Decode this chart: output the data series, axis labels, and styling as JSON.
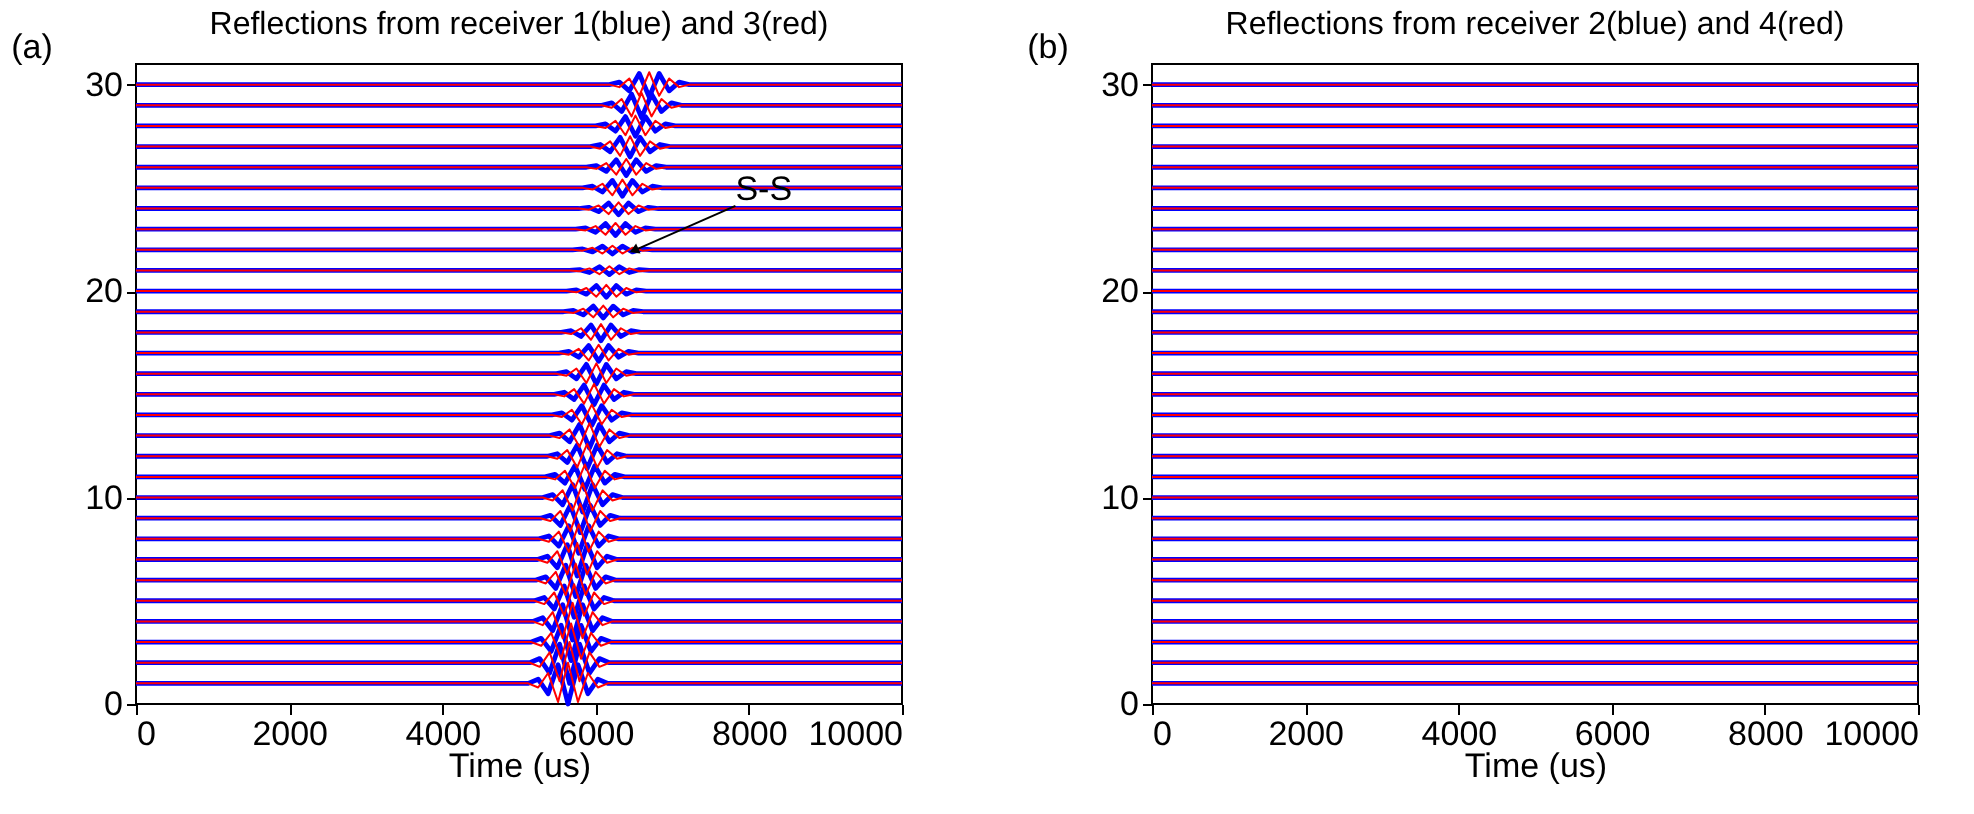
{
  "chart_data": [
    {
      "type": "line",
      "title": "Reflections from receiver 1(blue) and 3(red)",
      "xlabel": "Time (us)",
      "xlim": [
        0,
        10000
      ],
      "xticks": [
        0,
        2000,
        4000,
        6000,
        8000,
        10000
      ],
      "ylim": [
        0,
        31
      ],
      "yticks": [
        0,
        10,
        20,
        30
      ],
      "annotations": [
        "(a)",
        {
          "text": "S-S",
          "x": 6520,
          "y": 22
        }
      ],
      "series": [
        {
          "color": "#0000ff",
          "x": [
            0,
            5120,
            5250,
            5380,
            5510,
            5640,
            5770,
            5900,
            6030,
            6160,
            10000
          ],
          "values": [
            1,
            1,
            1.2,
            0.5,
            1.9,
            0,
            1.9,
            0.5,
            1.2,
            1,
            1
          ]
        },
        {
          "color": "#0000ff",
          "x": [
            0,
            5140,
            5270,
            5400,
            5530,
            5660,
            5790,
            5920,
            6050,
            6180,
            10000
          ],
          "values": [
            2,
            2,
            2.2,
            1.5,
            2.9,
            1,
            2.9,
            1.5,
            2.2,
            2,
            2
          ]
        },
        {
          "color": "#0000ff",
          "x": [
            0,
            5160,
            5290,
            5420,
            5550,
            5680,
            5810,
            5940,
            6070,
            6200,
            10000
          ],
          "values": [
            3,
            3,
            3.18,
            2.55,
            3.81,
            2.1,
            3.81,
            2.55,
            3.18,
            3,
            3
          ]
        },
        {
          "color": "#0000ff",
          "x": [
            0,
            5180,
            5310,
            5440,
            5570,
            5700,
            5830,
            5960,
            6090,
            6220,
            10000
          ],
          "values": [
            4,
            4,
            4.18,
            3.55,
            4.81,
            3.1,
            4.81,
            3.55,
            4.18,
            4,
            4
          ]
        },
        {
          "color": "#0000ff",
          "x": [
            0,
            5200,
            5330,
            5460,
            5590,
            5720,
            5850,
            5980,
            6110,
            6240,
            10000
          ],
          "values": [
            5,
            5,
            5.16,
            4.6,
            5.72,
            4.2,
            5.72,
            4.6,
            5.16,
            5,
            5
          ]
        },
        {
          "color": "#0000ff",
          "x": [
            0,
            5220,
            5350,
            5480,
            5610,
            5740,
            5870,
            6000,
            6130,
            6260,
            10000
          ],
          "values": [
            6,
            6,
            6.16,
            5.6,
            6.72,
            5.2,
            6.72,
            5.6,
            6.16,
            6,
            6
          ]
        },
        {
          "color": "#0000ff",
          "x": [
            0,
            5240,
            5370,
            5500,
            5630,
            5760,
            5890,
            6020,
            6150,
            6280,
            10000
          ],
          "values": [
            7,
            7,
            7.16,
            6.6,
            7.72,
            6.2,
            7.72,
            6.6,
            7.16,
            7,
            7
          ]
        },
        {
          "color": "#0000ff",
          "x": [
            0,
            5260,
            5390,
            5520,
            5650,
            5780,
            5910,
            6040,
            6170,
            6300,
            10000
          ],
          "values": [
            8,
            8,
            8.14,
            7.65,
            8.63,
            7.3,
            8.63,
            7.65,
            8.14,
            8,
            8
          ]
        },
        {
          "color": "#0000ff",
          "x": [
            0,
            5280,
            5410,
            5540,
            5670,
            5800,
            5930,
            6060,
            6190,
            6320,
            10000
          ],
          "values": [
            9,
            9,
            9.14,
            8.65,
            9.63,
            8.3,
            9.63,
            8.65,
            9.14,
            9,
            9
          ]
        },
        {
          "color": "#0000ff",
          "x": [
            0,
            5310,
            5440,
            5570,
            5700,
            5830,
            5960,
            6090,
            6220,
            6350,
            10000
          ],
          "values": [
            10,
            10,
            10.14,
            9.65,
            10.63,
            9.3,
            10.63,
            9.65,
            10.14,
            10,
            10
          ]
        },
        {
          "color": "#0000ff",
          "x": [
            0,
            5340,
            5470,
            5600,
            5730,
            5860,
            5990,
            6120,
            6250,
            6380,
            10000
          ],
          "values": [
            11,
            11,
            11.12,
            10.7,
            11.54,
            10.4,
            11.54,
            10.7,
            11.12,
            11,
            11
          ]
        },
        {
          "color": "#0000ff",
          "x": [
            0,
            5370,
            5500,
            5630,
            5760,
            5890,
            6020,
            6150,
            6280,
            6410,
            10000
          ],
          "values": [
            12,
            12,
            12.12,
            11.7,
            12.54,
            11.4,
            12.54,
            11.7,
            12.12,
            12,
            12
          ]
        },
        {
          "color": "#0000ff",
          "x": [
            0,
            5400,
            5530,
            5660,
            5790,
            5920,
            6050,
            6180,
            6310,
            6440,
            10000
          ],
          "values": [
            13,
            13,
            13.12,
            12.7,
            13.54,
            12.4,
            13.54,
            12.7,
            13.12,
            13,
            13
          ]
        },
        {
          "color": "#0000ff",
          "x": [
            0,
            5430,
            5560,
            5690,
            5820,
            5950,
            6080,
            6210,
            6340,
            6470,
            10000
          ],
          "values": [
            14,
            14,
            14.1,
            13.75,
            14.45,
            13.5,
            14.45,
            13.75,
            14.1,
            14,
            14
          ]
        },
        {
          "color": "#0000ff",
          "x": [
            0,
            5460,
            5590,
            5720,
            5850,
            5980,
            6110,
            6240,
            6370,
            6500,
            10000
          ],
          "values": [
            15,
            15,
            15.1,
            14.75,
            15.45,
            14.5,
            15.45,
            14.75,
            15.1,
            15,
            15
          ]
        },
        {
          "color": "#0000ff",
          "x": [
            0,
            5490,
            5620,
            5750,
            5880,
            6010,
            6140,
            6270,
            6400,
            6530,
            10000
          ],
          "values": [
            16,
            16,
            16.1,
            15.75,
            16.45,
            15.5,
            16.45,
            15.75,
            16.1,
            16,
            16
          ]
        },
        {
          "color": "#0000ff",
          "x": [
            0,
            5520,
            5650,
            5780,
            5910,
            6040,
            6170,
            6300,
            6430,
            6560,
            10000
          ],
          "values": [
            17,
            17,
            17.08,
            16.8,
            17.36,
            16.6,
            17.36,
            16.8,
            17.08,
            17,
            17
          ]
        },
        {
          "color": "#0000ff",
          "x": [
            0,
            5550,
            5680,
            5810,
            5940,
            6070,
            6200,
            6330,
            6460,
            6590,
            10000
          ],
          "values": [
            18,
            18,
            18.08,
            17.8,
            18.36,
            17.6,
            18.36,
            17.8,
            18.08,
            18,
            18
          ]
        },
        {
          "color": "#0000ff",
          "x": [
            0,
            5580,
            5710,
            5840,
            5970,
            6100,
            6230,
            6360,
            6490,
            6620,
            10000
          ],
          "values": [
            19,
            19,
            19.06,
            18.85,
            19.27,
            18.7,
            19.27,
            18.85,
            19.06,
            19,
            19
          ]
        },
        {
          "color": "#0000ff",
          "x": [
            0,
            5620,
            5750,
            5880,
            6010,
            6140,
            6270,
            6400,
            6530,
            6660,
            10000
          ],
          "values": [
            20,
            20,
            20.06,
            19.85,
            20.27,
            19.7,
            20.27,
            19.85,
            20.06,
            20,
            20
          ]
        },
        {
          "color": "#0000ff",
          "x": [
            0,
            5660,
            5790,
            5920,
            6050,
            6180,
            6310,
            6440,
            6570,
            6700,
            10000
          ],
          "values": [
            21,
            21,
            21.04,
            20.9,
            21.18,
            20.8,
            21.18,
            20.9,
            21.04,
            21,
            21
          ]
        },
        {
          "color": "#0000ff",
          "x": [
            0,
            5700,
            5830,
            5960,
            6090,
            6220,
            6350,
            6480,
            6610,
            6740,
            10000
          ],
          "values": [
            22,
            22,
            22.04,
            21.9,
            22.18,
            21.8,
            22.18,
            21.9,
            22.04,
            22,
            22
          ]
        },
        {
          "color": "#0000ff",
          "x": [
            0,
            5740,
            5870,
            6000,
            6130,
            6260,
            6390,
            6520,
            6650,
            6780,
            10000
          ],
          "values": [
            23,
            23,
            23.06,
            22.85,
            23.27,
            22.7,
            23.27,
            22.85,
            23.06,
            23,
            23
          ]
        },
        {
          "color": "#0000ff",
          "x": [
            0,
            5780,
            5910,
            6040,
            6170,
            6300,
            6430,
            6560,
            6690,
            6820,
            10000
          ],
          "values": [
            24,
            24,
            24.06,
            23.85,
            24.27,
            23.7,
            24.27,
            23.85,
            24.06,
            24,
            24
          ]
        },
        {
          "color": "#0000ff",
          "x": [
            0,
            5830,
            5960,
            6090,
            6220,
            6350,
            6480,
            6610,
            6740,
            6870,
            10000
          ],
          "values": [
            25,
            25,
            25.08,
            24.8,
            25.36,
            24.6,
            25.36,
            24.8,
            25.08,
            25,
            25
          ]
        },
        {
          "color": "#0000ff",
          "x": [
            0,
            5880,
            6010,
            6140,
            6270,
            6400,
            6530,
            6660,
            6790,
            6920,
            10000
          ],
          "values": [
            26,
            26,
            26.08,
            25.8,
            26.36,
            25.6,
            26.36,
            25.8,
            26.08,
            26,
            26
          ]
        },
        {
          "color": "#0000ff",
          "x": [
            0,
            5930,
            6060,
            6190,
            6320,
            6450,
            6580,
            6710,
            6840,
            6970,
            10000
          ],
          "values": [
            27,
            27,
            27.1,
            26.75,
            27.45,
            26.5,
            27.45,
            26.75,
            27.1,
            27,
            27
          ]
        },
        {
          "color": "#0000ff",
          "x": [
            0,
            6000,
            6130,
            6260,
            6390,
            6520,
            6650,
            6780,
            6910,
            7040,
            10000
          ],
          "values": [
            28,
            28,
            28.1,
            27.75,
            28.45,
            27.5,
            28.45,
            27.75,
            28.1,
            28,
            28
          ]
        },
        {
          "color": "#0000ff",
          "x": [
            0,
            6080,
            6210,
            6340,
            6470,
            6600,
            6730,
            6860,
            6990,
            7120,
            10000
          ],
          "values": [
            29,
            29,
            29.12,
            28.7,
            29.54,
            28.4,
            29.54,
            28.7,
            29.12,
            29,
            29
          ]
        },
        {
          "color": "#0000ff",
          "x": [
            0,
            6180,
            6310,
            6440,
            6570,
            6700,
            6830,
            6960,
            7090,
            7220,
            10000
          ],
          "values": [
            30,
            30,
            30.12,
            29.7,
            30.54,
            29.4,
            30.54,
            29.7,
            30.12,
            30,
            30
          ]
        },
        {
          "color": "#ff0000",
          "x": [
            0,
            5120,
            5250,
            5380,
            5510,
            5640,
            5770,
            5900,
            6030,
            6160,
            10000
          ],
          "values": [
            1,
            1,
            0.8,
            1.5,
            0.1,
            2,
            0.1,
            1.5,
            0.8,
            1,
            1
          ]
        },
        {
          "color": "#ff0000",
          "x": [
            0,
            5140,
            5270,
            5400,
            5530,
            5660,
            5790,
            5920,
            6050,
            6180,
            10000
          ],
          "values": [
            2,
            2,
            1.8,
            2.5,
            1.1,
            3,
            1.1,
            2.5,
            1.8,
            2,
            2
          ]
        },
        {
          "color": "#ff0000",
          "x": [
            0,
            5160,
            5290,
            5420,
            5550,
            5680,
            5810,
            5940,
            6070,
            6200,
            10000
          ],
          "values": [
            3,
            3,
            2.82,
            3.45,
            2.19,
            3.9,
            2.19,
            3.45,
            2.82,
            3,
            3
          ]
        },
        {
          "color": "#ff0000",
          "x": [
            0,
            5180,
            5310,
            5440,
            5570,
            5700,
            5830,
            5960,
            6090,
            6220,
            10000
          ],
          "values": [
            4,
            4,
            3.82,
            4.45,
            3.19,
            4.9,
            3.19,
            4.45,
            3.82,
            4,
            4
          ]
        },
        {
          "color": "#ff0000",
          "x": [
            0,
            5200,
            5330,
            5460,
            5590,
            5720,
            5850,
            5980,
            6110,
            6240,
            10000
          ],
          "values": [
            5,
            5,
            4.84,
            5.4,
            4.28,
            5.8,
            4.28,
            5.4,
            4.84,
            5,
            5
          ]
        },
        {
          "color": "#ff0000",
          "x": [
            0,
            5220,
            5350,
            5480,
            5610,
            5740,
            5870,
            6000,
            6130,
            6260,
            10000
          ],
          "values": [
            6,
            6,
            5.84,
            6.4,
            5.28,
            6.8,
            5.28,
            6.4,
            5.84,
            6,
            6
          ]
        },
        {
          "color": "#ff0000",
          "x": [
            0,
            5240,
            5370,
            5500,
            5630,
            5760,
            5890,
            6020,
            6150,
            6280,
            10000
          ],
          "values": [
            7,
            7,
            6.84,
            7.4,
            6.28,
            7.8,
            6.28,
            7.4,
            6.84,
            7,
            7
          ]
        },
        {
          "color": "#ff0000",
          "x": [
            0,
            5260,
            5390,
            5520,
            5650,
            5780,
            5910,
            6040,
            6170,
            6300,
            10000
          ],
          "values": [
            8,
            8,
            7.86,
            8.35,
            7.37,
            8.7,
            7.37,
            8.35,
            7.86,
            8,
            8
          ]
        },
        {
          "color": "#ff0000",
          "x": [
            0,
            5280,
            5410,
            5540,
            5670,
            5800,
            5930,
            6060,
            6190,
            6320,
            10000
          ],
          "values": [
            9,
            9,
            8.86,
            9.35,
            8.37,
            9.7,
            8.37,
            9.35,
            8.86,
            9,
            9
          ]
        },
        {
          "color": "#ff0000",
          "x": [
            0,
            5310,
            5440,
            5570,
            5700,
            5830,
            5960,
            6090,
            6220,
            6350,
            10000
          ],
          "values": [
            10,
            10,
            9.86,
            10.35,
            9.37,
            10.7,
            9.37,
            10.35,
            9.86,
            10,
            10
          ]
        },
        {
          "color": "#ff0000",
          "x": [
            0,
            5340,
            5470,
            5600,
            5730,
            5860,
            5990,
            6120,
            6250,
            6380,
            10000
          ],
          "values": [
            11,
            11,
            10.88,
            11.3,
            10.46,
            11.6,
            10.46,
            11.3,
            10.88,
            11,
            11
          ]
        },
        {
          "color": "#ff0000",
          "x": [
            0,
            5370,
            5500,
            5630,
            5760,
            5890,
            6020,
            6150,
            6280,
            6410,
            10000
          ],
          "values": [
            12,
            12,
            11.88,
            12.3,
            11.46,
            12.6,
            11.46,
            12.3,
            11.88,
            12,
            12
          ]
        },
        {
          "color": "#ff0000",
          "x": [
            0,
            5400,
            5530,
            5660,
            5790,
            5920,
            6050,
            6180,
            6310,
            6440,
            10000
          ],
          "values": [
            13,
            13,
            12.88,
            13.3,
            12.46,
            13.6,
            12.46,
            13.3,
            12.88,
            13,
            13
          ]
        },
        {
          "color": "#ff0000",
          "x": [
            0,
            5430,
            5560,
            5690,
            5820,
            5950,
            6080,
            6210,
            6340,
            6470,
            10000
          ],
          "values": [
            14,
            14,
            13.9,
            14.25,
            13.55,
            14.5,
            13.55,
            14.25,
            13.9,
            14,
            14
          ]
        },
        {
          "color": "#ff0000",
          "x": [
            0,
            5460,
            5590,
            5720,
            5850,
            5980,
            6110,
            6240,
            6370,
            6500,
            10000
          ],
          "values": [
            15,
            15,
            14.9,
            15.25,
            14.55,
            15.5,
            14.55,
            15.25,
            14.9,
            15,
            15
          ]
        },
        {
          "color": "#ff0000",
          "x": [
            0,
            5490,
            5620,
            5750,
            5880,
            6010,
            6140,
            6270,
            6400,
            6530,
            10000
          ],
          "values": [
            16,
            16,
            15.9,
            16.25,
            15.55,
            16.5,
            15.55,
            16.25,
            15.9,
            16,
            16
          ]
        },
        {
          "color": "#ff0000",
          "x": [
            0,
            5520,
            5650,
            5780,
            5910,
            6040,
            6170,
            6300,
            6430,
            6560,
            10000
          ],
          "values": [
            17,
            17,
            16.92,
            17.2,
            16.64,
            17.4,
            16.64,
            17.2,
            16.92,
            17,
            17
          ]
        },
        {
          "color": "#ff0000",
          "x": [
            0,
            5550,
            5680,
            5810,
            5940,
            6070,
            6200,
            6330,
            6460,
            6590,
            10000
          ],
          "values": [
            18,
            18,
            17.92,
            18.2,
            17.64,
            18.4,
            17.64,
            18.2,
            17.92,
            18,
            18
          ]
        },
        {
          "color": "#ff0000",
          "x": [
            0,
            5580,
            5710,
            5840,
            5970,
            6100,
            6230,
            6360,
            6490,
            6620,
            10000
          ],
          "values": [
            19,
            19,
            18.94,
            19.15,
            18.73,
            19.3,
            18.73,
            19.15,
            18.94,
            19,
            19
          ]
        },
        {
          "color": "#ff0000",
          "x": [
            0,
            5620,
            5750,
            5880,
            6010,
            6140,
            6270,
            6400,
            6530,
            6660,
            10000
          ],
          "values": [
            20,
            20,
            19.94,
            20.15,
            19.73,
            20.3,
            19.73,
            20.15,
            19.94,
            20,
            20
          ]
        },
        {
          "color": "#ff0000",
          "x": [
            0,
            5660,
            5790,
            5920,
            6050,
            6180,
            6310,
            6440,
            6570,
            6700,
            10000
          ],
          "values": [
            21,
            21,
            20.96,
            21.1,
            20.82,
            21.2,
            20.82,
            21.1,
            20.96,
            21,
            21
          ]
        },
        {
          "color": "#ff0000",
          "x": [
            0,
            5700,
            5830,
            5960,
            6090,
            6220,
            6350,
            6480,
            6610,
            6740,
            10000
          ],
          "values": [
            22,
            22,
            21.96,
            22.1,
            21.82,
            22.2,
            21.82,
            22.1,
            21.96,
            22,
            22
          ]
        },
        {
          "color": "#ff0000",
          "x": [
            0,
            5740,
            5870,
            6000,
            6130,
            6260,
            6390,
            6520,
            6650,
            6780,
            10000
          ],
          "values": [
            23,
            23,
            22.94,
            23.15,
            22.73,
            23.3,
            22.73,
            23.15,
            22.94,
            23,
            23
          ]
        },
        {
          "color": "#ff0000",
          "x": [
            0,
            5780,
            5910,
            6040,
            6170,
            6300,
            6430,
            6560,
            6690,
            6820,
            10000
          ],
          "values": [
            24,
            24,
            23.94,
            24.15,
            23.73,
            24.3,
            23.73,
            24.15,
            23.94,
            24,
            24
          ]
        },
        {
          "color": "#ff0000",
          "x": [
            0,
            5830,
            5960,
            6090,
            6220,
            6350,
            6480,
            6610,
            6740,
            6870,
            10000
          ],
          "values": [
            25,
            25,
            24.92,
            25.2,
            24.64,
            25.4,
            24.64,
            25.2,
            24.92,
            25,
            25
          ]
        },
        {
          "color": "#ff0000",
          "x": [
            0,
            5880,
            6010,
            6140,
            6270,
            6400,
            6530,
            6660,
            6790,
            6920,
            10000
          ],
          "values": [
            26,
            26,
            25.92,
            26.2,
            25.64,
            26.4,
            25.64,
            26.2,
            25.92,
            26,
            26
          ]
        },
        {
          "color": "#ff0000",
          "x": [
            0,
            5930,
            6060,
            6190,
            6320,
            6450,
            6580,
            6710,
            6840,
            6970,
            10000
          ],
          "values": [
            27,
            27,
            26.9,
            27.25,
            26.55,
            27.5,
            26.55,
            27.25,
            26.9,
            27,
            27
          ]
        },
        {
          "color": "#ff0000",
          "x": [
            0,
            6000,
            6130,
            6260,
            6390,
            6520,
            6650,
            6780,
            6910,
            7040,
            10000
          ],
          "values": [
            28,
            28,
            27.9,
            28.25,
            27.55,
            28.5,
            27.55,
            28.25,
            27.9,
            28,
            28
          ]
        },
        {
          "color": "#ff0000",
          "x": [
            0,
            6080,
            6210,
            6340,
            6470,
            6600,
            6730,
            6860,
            6990,
            7120,
            10000
          ],
          "values": [
            29,
            29,
            28.88,
            29.3,
            28.46,
            29.6,
            28.46,
            29.3,
            28.88,
            29,
            29
          ]
        },
        {
          "color": "#ff0000",
          "x": [
            0,
            6180,
            6310,
            6440,
            6570,
            6700,
            6830,
            6960,
            7090,
            7220,
            10000
          ],
          "values": [
            30,
            30,
            29.88,
            30.3,
            29.46,
            30.6,
            29.46,
            30.3,
            29.88,
            30,
            30
          ]
        }
      ]
    },
    {
      "type": "line",
      "title": "Reflections from receiver 2(blue) and 4(red)",
      "xlabel": "Time (us)",
      "xlim": [
        0,
        10000
      ],
      "xticks": [
        0,
        2000,
        4000,
        6000,
        8000,
        10000
      ],
      "ylim": [
        0,
        31
      ],
      "yticks": [
        0,
        10,
        20,
        30
      ],
      "annotations": [
        "(b)"
      ],
      "x": [
        0,
        10000
      ],
      "series": [
        {
          "color": "#0000ff",
          "values": [
            1,
            1
          ]
        },
        {
          "color": "#0000ff",
          "values": [
            2,
            2
          ]
        },
        {
          "color": "#0000ff",
          "values": [
            3,
            3
          ]
        },
        {
          "color": "#0000ff",
          "values": [
            4,
            4
          ]
        },
        {
          "color": "#0000ff",
          "values": [
            5,
            5
          ]
        },
        {
          "color": "#0000ff",
          "values": [
            6,
            6
          ]
        },
        {
          "color": "#0000ff",
          "values": [
            7,
            7
          ]
        },
        {
          "color": "#0000ff",
          "values": [
            8,
            8
          ]
        },
        {
          "color": "#0000ff",
          "values": [
            9,
            9
          ]
        },
        {
          "color": "#0000ff",
          "values": [
            10,
            10
          ]
        },
        {
          "color": "#0000ff",
          "values": [
            11,
            11
          ]
        },
        {
          "color": "#0000ff",
          "values": [
            12,
            12
          ]
        },
        {
          "color": "#0000ff",
          "values": [
            13,
            13
          ]
        },
        {
          "color": "#0000ff",
          "values": [
            14,
            14
          ]
        },
        {
          "color": "#0000ff",
          "values": [
            15,
            15
          ]
        },
        {
          "color": "#0000ff",
          "values": [
            16,
            16
          ]
        },
        {
          "color": "#0000ff",
          "values": [
            17,
            17
          ]
        },
        {
          "color": "#0000ff",
          "values": [
            18,
            18
          ]
        },
        {
          "color": "#0000ff",
          "values": [
            19,
            19
          ]
        },
        {
          "color": "#0000ff",
          "values": [
            20,
            20
          ]
        },
        {
          "color": "#0000ff",
          "values": [
            21,
            21
          ]
        },
        {
          "color": "#0000ff",
          "values": [
            22,
            22
          ]
        },
        {
          "color": "#0000ff",
          "values": [
            23,
            23
          ]
        },
        {
          "color": "#0000ff",
          "values": [
            24,
            24
          ]
        },
        {
          "color": "#0000ff",
          "values": [
            25,
            25
          ]
        },
        {
          "color": "#0000ff",
          "values": [
            26,
            26
          ]
        },
        {
          "color": "#0000ff",
          "values": [
            27,
            27
          ]
        },
        {
          "color": "#0000ff",
          "values": [
            28,
            28
          ]
        },
        {
          "color": "#0000ff",
          "values": [
            29,
            29
          ]
        },
        {
          "color": "#0000ff",
          "values": [
            30,
            30
          ]
        },
        {
          "color": "#ff0000",
          "values": [
            1,
            1
          ]
        },
        {
          "color": "#ff0000",
          "values": [
            2,
            2
          ]
        },
        {
          "color": "#ff0000",
          "values": [
            3,
            3
          ]
        },
        {
          "color": "#ff0000",
          "values": [
            4,
            4
          ]
        },
        {
          "color": "#ff0000",
          "values": [
            5,
            5
          ]
        },
        {
          "color": "#ff0000",
          "values": [
            6,
            6
          ]
        },
        {
          "color": "#ff0000",
          "values": [
            7,
            7
          ]
        },
        {
          "color": "#ff0000",
          "values": [
            8,
            8
          ]
        },
        {
          "color": "#ff0000",
          "values": [
            9,
            9
          ]
        },
        {
          "color": "#ff0000",
          "values": [
            10,
            10
          ]
        },
        {
          "color": "#ff0000",
          "values": [
            11,
            11
          ]
        },
        {
          "color": "#ff0000",
          "values": [
            12,
            12
          ]
        },
        {
          "color": "#ff0000",
          "values": [
            13,
            13
          ]
        },
        {
          "color": "#ff0000",
          "values": [
            14,
            14
          ]
        },
        {
          "color": "#ff0000",
          "values": [
            15,
            15
          ]
        },
        {
          "color": "#ff0000",
          "values": [
            16,
            16
          ]
        },
        {
          "color": "#ff0000",
          "values": [
            17,
            17
          ]
        },
        {
          "color": "#ff0000",
          "values": [
            18,
            18
          ]
        },
        {
          "color": "#ff0000",
          "values": [
            19,
            19
          ]
        },
        {
          "color": "#ff0000",
          "values": [
            20,
            20
          ]
        },
        {
          "color": "#ff0000",
          "values": [
            21,
            21
          ]
        },
        {
          "color": "#ff0000",
          "values": [
            22,
            22
          ]
        },
        {
          "color": "#ff0000",
          "values": [
            23,
            23
          ]
        },
        {
          "color": "#ff0000",
          "values": [
            24,
            24
          ]
        },
        {
          "color": "#ff0000",
          "values": [
            25,
            25
          ]
        },
        {
          "color": "#ff0000",
          "values": [
            26,
            26
          ]
        },
        {
          "color": "#ff0000",
          "values": [
            27,
            27
          ]
        },
        {
          "color": "#ff0000",
          "values": [
            28,
            28
          ]
        },
        {
          "color": "#ff0000",
          "values": [
            29,
            29
          ]
        },
        {
          "color": "#ff0000",
          "values": [
            30,
            30
          ]
        }
      ]
    }
  ]
}
